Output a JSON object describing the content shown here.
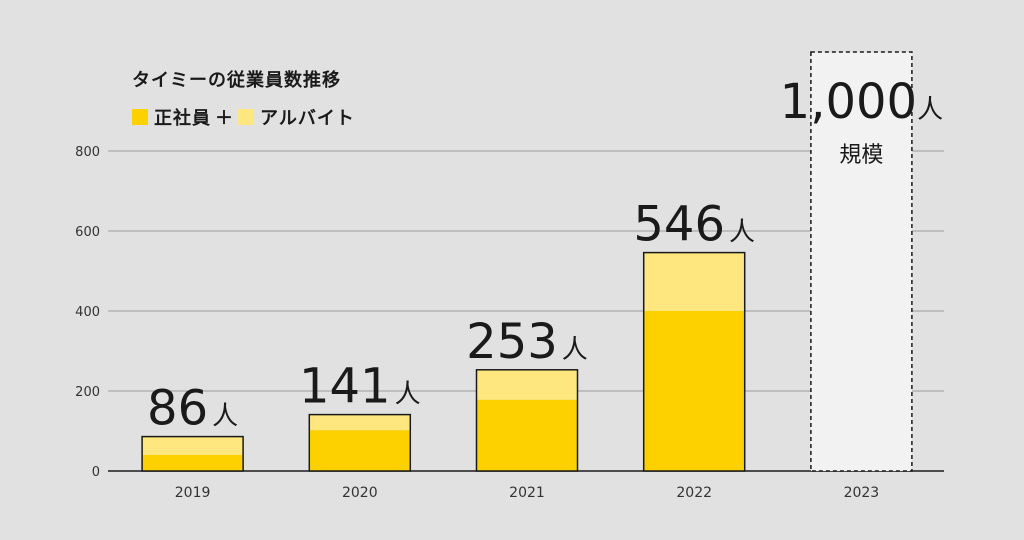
{
  "chart_data": {
    "type": "bar",
    "title": "タイミーの従業員数推移",
    "legend": {
      "items": [
        {
          "label": "正社員",
          "color": "#fdd100"
        },
        {
          "label": "アルバイト",
          "color": "#fde77e"
        }
      ],
      "separator": "＋"
    },
    "categories": [
      "2019",
      "2020",
      "2021",
      "2022",
      "2023"
    ],
    "series": [
      {
        "name": "正社員",
        "values": [
          40,
          102,
          178,
          400,
          null
        ]
      },
      {
        "name": "アルバイト",
        "values": [
          46,
          39,
          75,
          146,
          null
        ]
      }
    ],
    "totals_labels": [
      {
        "number": "86",
        "unit": "人"
      },
      {
        "number": "141",
        "unit": "人"
      },
      {
        "number": "253",
        "unit": "人"
      },
      {
        "number": "546",
        "unit": "人"
      },
      {
        "number": "1,000",
        "unit": "人",
        "sub": "規模"
      }
    ],
    "projection_category": "2023",
    "yticks": [
      0,
      200,
      400,
      600,
      800
    ],
    "ylim": [
      0,
      800
    ],
    "grid": true
  },
  "colors": {
    "background": "#e1e1e1",
    "fulltime": "#fdd100",
    "parttime": "#fde77e",
    "projection_fill": "#f2f2f2",
    "grid": "#9a9a9a",
    "outline": "#1a1a1a"
  }
}
